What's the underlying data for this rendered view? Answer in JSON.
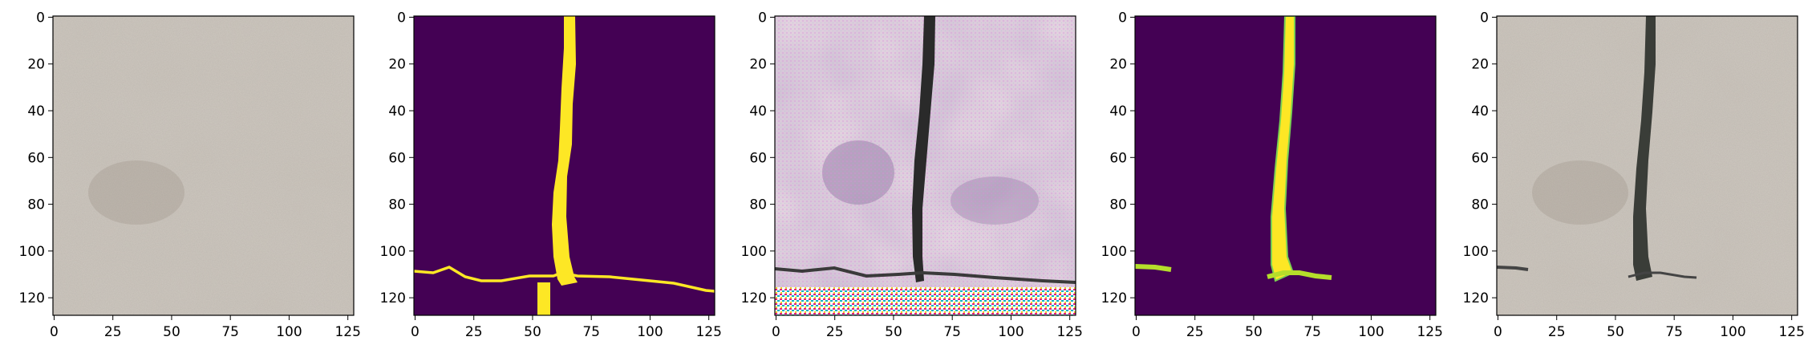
{
  "figure": {
    "panels": [
      {
        "name": "input-texture-panel",
        "kind": "concrete"
      },
      {
        "name": "crack-mask-panel",
        "kind": "mask"
      },
      {
        "name": "generated-output-panel",
        "kind": "generated"
      },
      {
        "name": "predicted-mask-panel",
        "kind": "soft-mask"
      },
      {
        "name": "composited-result-panel",
        "kind": "composite"
      }
    ],
    "axes": {
      "x_ticks": [
        "0",
        "25",
        "50",
        "75",
        "100",
        "125"
      ],
      "y_ticks": [
        "0",
        "20",
        "40",
        "60",
        "80",
        "100",
        "120"
      ],
      "x_values": [
        0,
        25,
        50,
        75,
        100,
        125
      ],
      "y_values": [
        0,
        20,
        40,
        60,
        80,
        100,
        120
      ],
      "range": [
        -0.5,
        127.5
      ]
    },
    "colors": {
      "mask_background": "#440154",
      "mask_foreground": "#fde725",
      "mask_edge": "#7ad151",
      "concrete_base": "#cfc9c1",
      "generated_base": "#e7d6e2",
      "crack_dark": "#2a2a2a"
    }
  }
}
